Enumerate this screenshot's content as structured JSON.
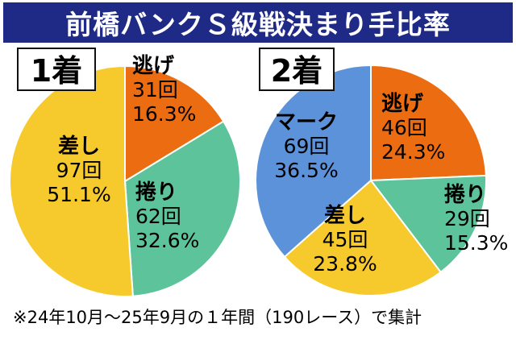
{
  "title": "前橋バンクＳ級戦決まり手比率",
  "footnote": "※24年10月～25年9月の１年間（190レース）で集計",
  "colors": {
    "title_bg": "#1f2a86",
    "逃げ": "#ec6c11",
    "捲り": "#5cc39a",
    "差し": "#f6ca2d",
    "マーク": "#5b92da"
  },
  "chart_data": [
    {
      "type": "pie",
      "label": "1着",
      "slices": [
        {
          "name": "逃げ",
          "count": "31回",
          "percent": "16.3%",
          "value": 16.3
        },
        {
          "name": "捲り",
          "count": "62回",
          "percent": "32.6%",
          "value": 32.6
        },
        {
          "name": "差し",
          "count": "97回",
          "percent": "51.1%",
          "value": 51.1
        }
      ]
    },
    {
      "type": "pie",
      "label": "2着",
      "slices": [
        {
          "name": "逃げ",
          "count": "46回",
          "percent": "24.3%",
          "value": 24.3
        },
        {
          "name": "捲り",
          "count": "29回",
          "percent": "15.3%",
          "value": 15.3
        },
        {
          "name": "差し",
          "count": "45回",
          "percent": "23.8%",
          "value": 23.8
        },
        {
          "name": "マーク",
          "count": "69回",
          "percent": "36.5%",
          "value": 36.5
        }
      ]
    }
  ]
}
